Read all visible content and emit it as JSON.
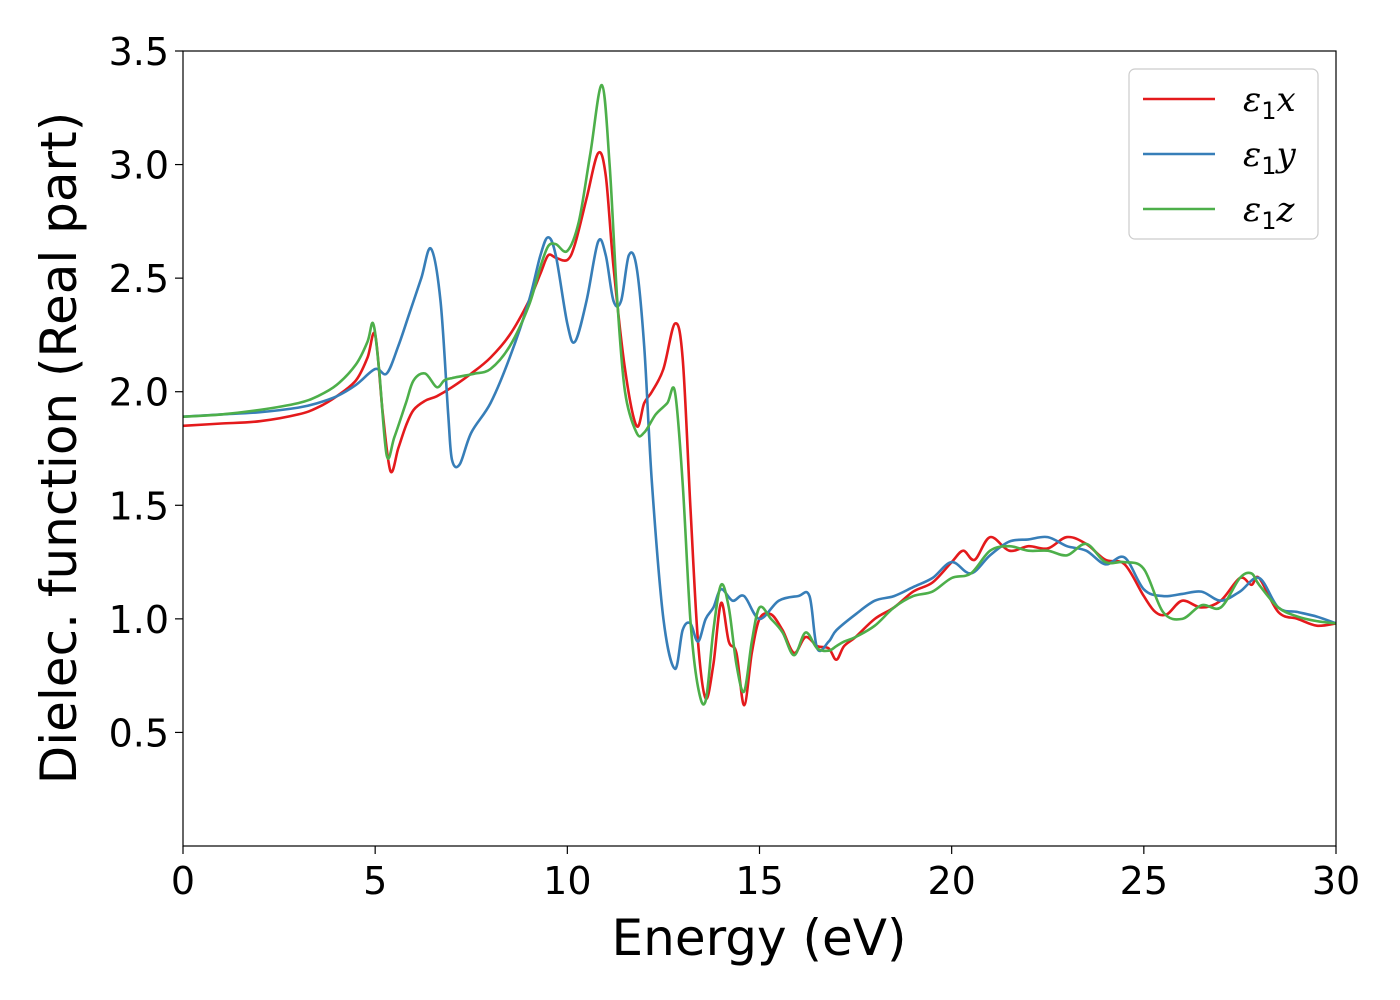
{
  "chart_data": {
    "type": "line",
    "title": "",
    "xlabel": "Energy (eV)",
    "ylabel": "Dielec. function (Real part)",
    "xlim": [
      0,
      30
    ],
    "ylim": [
      0.0,
      3.5
    ],
    "xticks": [
      "0",
      "5",
      "10",
      "15",
      "20",
      "25",
      "30"
    ],
    "yticks": [
      "0.5",
      "1.0",
      "1.5",
      "2.0",
      "2.5",
      "3.0",
      "3.5"
    ],
    "grid": false,
    "legend_position": "top-right",
    "series": [
      {
        "name": "ε1x",
        "legend_base": "ε",
        "legend_sub": "1",
        "legend_var": "x",
        "color": "#e41a1c",
        "x": [
          0,
          1,
          2,
          3,
          3.5,
          4,
          4.5,
          4.8,
          5.0,
          5.2,
          5.4,
          5.6,
          5.8,
          6.0,
          6.3,
          6.6,
          7.0,
          7.5,
          8.0,
          8.5,
          9.0,
          9.3,
          9.5,
          9.7,
          10.0,
          10.2,
          10.5,
          10.8,
          11.0,
          11.2,
          11.5,
          11.8,
          12.0,
          12.2,
          12.5,
          12.8,
          13.0,
          13.2,
          13.4,
          13.6,
          13.8,
          14.0,
          14.2,
          14.4,
          14.6,
          14.8,
          15.0,
          15.3,
          15.6,
          15.9,
          16.2,
          16.5,
          16.8,
          17.0,
          17.2,
          17.5,
          18,
          18.5,
          19,
          19.5,
          20,
          20.3,
          20.6,
          21,
          21.5,
          22,
          22.5,
          23,
          23.5,
          24,
          24.5,
          25,
          25.3,
          25.6,
          26,
          26.5,
          27,
          27.5,
          27.8,
          28,
          28.5,
          29,
          29.5,
          30
        ],
        "y": [
          1.85,
          1.86,
          1.87,
          1.9,
          1.93,
          1.98,
          2.05,
          2.15,
          2.25,
          1.9,
          1.65,
          1.75,
          1.85,
          1.92,
          1.96,
          1.98,
          2.02,
          2.08,
          2.15,
          2.25,
          2.4,
          2.52,
          2.6,
          2.59,
          2.58,
          2.65,
          2.85,
          3.05,
          2.95,
          2.55,
          2.1,
          1.85,
          1.95,
          2.0,
          2.1,
          2.3,
          2.15,
          1.5,
          0.9,
          0.65,
          0.8,
          1.07,
          0.9,
          0.85,
          0.62,
          0.85,
          1.0,
          1.02,
          0.95,
          0.85,
          0.92,
          0.88,
          0.87,
          0.82,
          0.88,
          0.92,
          1.0,
          1.05,
          1.12,
          1.16,
          1.25,
          1.3,
          1.26,
          1.36,
          1.3,
          1.32,
          1.31,
          1.36,
          1.33,
          1.26,
          1.24,
          1.1,
          1.03,
          1.02,
          1.08,
          1.05,
          1.08,
          1.18,
          1.15,
          1.18,
          1.03,
          1.0,
          0.97,
          0.98
        ]
      },
      {
        "name": "ε1y",
        "legend_base": "ε",
        "legend_sub": "1",
        "legend_var": "y",
        "color": "#377eb8",
        "x": [
          0,
          1,
          2,
          3,
          3.5,
          4,
          4.5,
          5.0,
          5.3,
          5.6,
          5.9,
          6.2,
          6.45,
          6.7,
          6.9,
          7.0,
          7.2,
          7.5,
          8.0,
          8.5,
          9.0,
          9.3,
          9.5,
          9.7,
          10.0,
          10.2,
          10.5,
          10.8,
          11.0,
          11.2,
          11.4,
          11.6,
          11.8,
          12.0,
          12.2,
          12.5,
          12.8,
          13.0,
          13.2,
          13.4,
          13.6,
          13.8,
          14.0,
          14.3,
          14.6,
          15.0,
          15.5,
          16.0,
          16.3,
          16.5,
          16.8,
          17.0,
          17.5,
          18,
          18.5,
          19,
          19.5,
          20,
          20.5,
          21,
          21.5,
          22,
          22.5,
          23,
          23.5,
          24,
          24.5,
          25,
          25.5,
          26,
          26.5,
          27,
          27.5,
          28,
          28.5,
          29,
          29.5,
          30
        ],
        "y": [
          1.89,
          1.9,
          1.91,
          1.93,
          1.95,
          1.98,
          2.03,
          2.1,
          2.08,
          2.2,
          2.35,
          2.5,
          2.63,
          2.4,
          1.9,
          1.7,
          1.68,
          1.82,
          1.95,
          2.15,
          2.4,
          2.6,
          2.68,
          2.6,
          2.3,
          2.22,
          2.4,
          2.66,
          2.6,
          2.4,
          2.4,
          2.6,
          2.55,
          2.2,
          1.6,
          1.0,
          0.78,
          0.95,
          0.98,
          0.9,
          1.0,
          1.05,
          1.13,
          1.08,
          1.1,
          1.0,
          1.08,
          1.1,
          1.1,
          0.87,
          0.9,
          0.95,
          1.02,
          1.08,
          1.1,
          1.14,
          1.18,
          1.25,
          1.2,
          1.28,
          1.34,
          1.35,
          1.36,
          1.32,
          1.3,
          1.24,
          1.27,
          1.13,
          1.1,
          1.11,
          1.12,
          1.08,
          1.12,
          1.18,
          1.05,
          1.03,
          1.01,
          0.98
        ]
      },
      {
        "name": "ε1z",
        "legend_base": "ε",
        "legend_sub": "1",
        "legend_var": "z",
        "color": "#4daf4a",
        "x": [
          0,
          1,
          2,
          3,
          3.5,
          4,
          4.5,
          4.8,
          4.95,
          5.1,
          5.3,
          5.5,
          5.8,
          6.0,
          6.3,
          6.6,
          6.8,
          7.0,
          7.3,
          7.6,
          8.0,
          8.5,
          9.0,
          9.3,
          9.5,
          9.7,
          10.0,
          10.3,
          10.6,
          10.9,
          11.1,
          11.3,
          11.5,
          11.8,
          12.0,
          12.3,
          12.6,
          12.8,
          13.0,
          13.2,
          13.4,
          13.6,
          13.8,
          14.0,
          14.2,
          14.4,
          14.6,
          14.8,
          15.0,
          15.3,
          15.6,
          15.9,
          16.2,
          16.5,
          16.8,
          17.0,
          17.2,
          17.5,
          18,
          18.5,
          19,
          19.5,
          20,
          20.5,
          21,
          21.5,
          22,
          22.5,
          23,
          23.5,
          24,
          24.5,
          25,
          25.5,
          26,
          26.5,
          27,
          27.5,
          27.8,
          28,
          28.5,
          29,
          29.5,
          30
        ],
        "y": [
          1.89,
          1.9,
          1.92,
          1.95,
          1.98,
          2.03,
          2.12,
          2.22,
          2.3,
          2.1,
          1.72,
          1.8,
          1.95,
          2.05,
          2.08,
          2.02,
          2.05,
          2.06,
          2.07,
          2.08,
          2.1,
          2.2,
          2.38,
          2.55,
          2.64,
          2.65,
          2.62,
          2.75,
          3.05,
          3.35,
          3.0,
          2.4,
          2.0,
          1.82,
          1.82,
          1.9,
          1.95,
          2.0,
          1.6,
          1.0,
          0.7,
          0.64,
          0.95,
          1.15,
          1.05,
          0.8,
          0.68,
          0.9,
          1.05,
          1.0,
          0.94,
          0.84,
          0.94,
          0.87,
          0.86,
          0.88,
          0.9,
          0.92,
          0.97,
          1.05,
          1.1,
          1.12,
          1.18,
          1.2,
          1.3,
          1.32,
          1.3,
          1.3,
          1.28,
          1.33,
          1.25,
          1.25,
          1.22,
          1.03,
          1.0,
          1.06,
          1.05,
          1.18,
          1.2,
          1.15,
          1.05,
          1.01,
          0.99,
          0.98
        ]
      }
    ]
  }
}
